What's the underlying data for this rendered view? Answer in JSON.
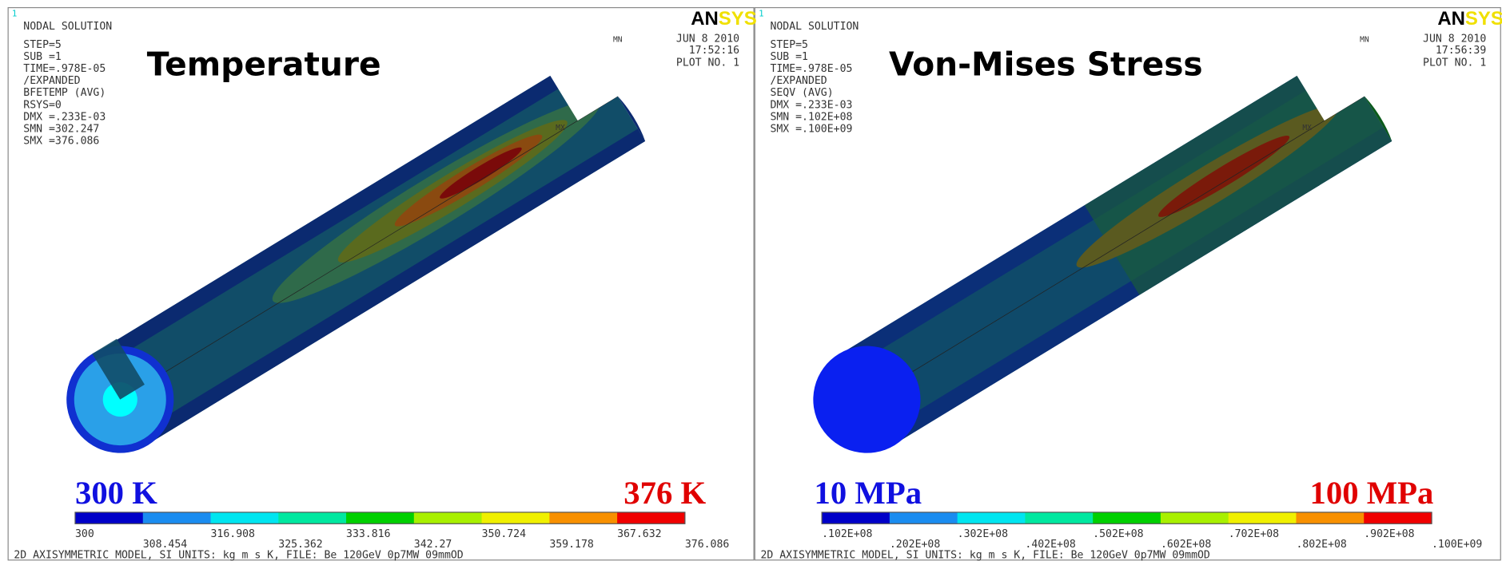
{
  "panels": [
    {
      "plot_index": "1",
      "heading": "NODAL SOLUTION",
      "info": [
        "STEP=5",
        "SUB =1",
        "TIME=.978E-05",
        "/EXPANDED",
        "BFETEMP  (AVG)",
        "RSYS=0",
        "DMX =.233E-03",
        "SMN =302.247",
        "SMX =376.086"
      ],
      "logo": [
        "AN",
        "SYS"
      ],
      "date": "JUN  8 2010",
      "time": "17:52:16",
      "plot_no": "PLOT NO.    1",
      "min_marker": "MN",
      "max_marker": "MX",
      "title": "Temperature",
      "low_label": "300 K",
      "high_label": "376 K",
      "scale_labels": [
        "300",
        "308.454",
        "316.908",
        "325.362",
        "333.816",
        "342.27",
        "350.724",
        "359.178",
        "367.632",
        "376.086"
      ],
      "footer": "2D AXISYMMETRIC MODEL, SI UNITS: kg m s K, FILE: Be 120GeV 0p7MW 09mmOD"
    },
    {
      "plot_index": "1",
      "heading": "NODAL SOLUTION",
      "info": [
        "STEP=5",
        "SUB =1",
        "TIME=.978E-05",
        "/EXPANDED",
        "SEQV     (AVG)",
        "DMX =.233E-03",
        "SMN =.102E+08",
        "SMX =.100E+09"
      ],
      "logo": [
        "AN",
        "SYS"
      ],
      "date": "JUN  8 2010",
      "time": "17:56:39",
      "plot_no": "PLOT NO.    1",
      "min_marker": "MN",
      "max_marker": "MX",
      "title": "Von-Mises Stress",
      "low_label": "10 MPa",
      "high_label": "100 MPa",
      "scale_labels": [
        ".102E+08",
        ".202E+08",
        ".302E+08",
        ".402E+08",
        ".502E+08",
        ".602E+08",
        ".702E+08",
        ".802E+08",
        ".902E+08",
        ".100E+09"
      ],
      "footer": "2D AXISYMMETRIC MODEL, SI UNITS: kg m s K, FILE: Be 120GeV 0p7MW 09mmOD"
    }
  ]
}
